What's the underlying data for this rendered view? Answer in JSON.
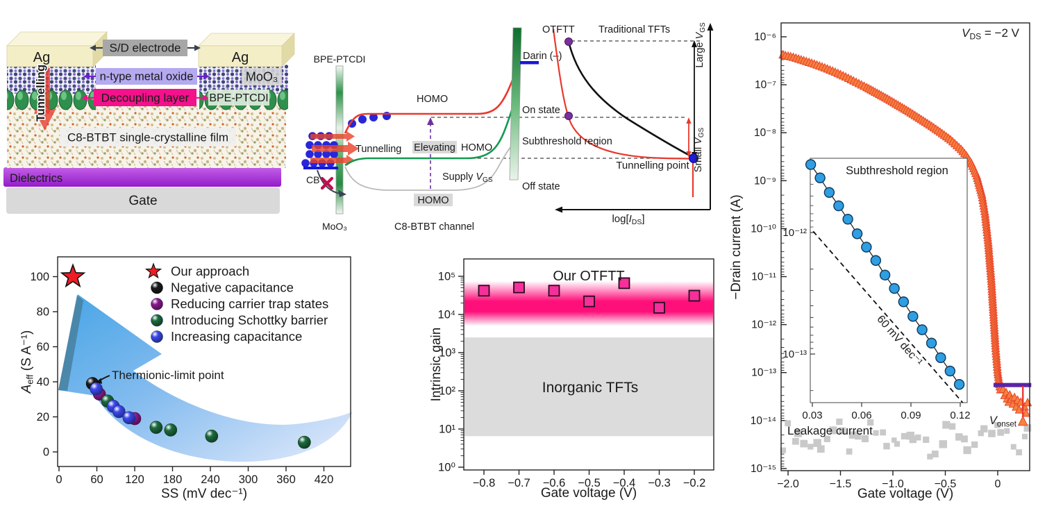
{
  "panel_device": {
    "ag_left": "Ag",
    "ag_right": "Ag",
    "sd_electrode": "S/D electrode",
    "n_type_metal_oxide": "n-type metal oxide",
    "moo3": "MoO₃",
    "decoupling_layer": "Decoupling layer",
    "bpe_ptcdi": "BPE-PTCDI",
    "tunnelling": "Tunnelling",
    "film": "C8-BTBT single-crystalline film",
    "dielectrics": "Dielectrics",
    "gate": "Gate"
  },
  "panel_band": {
    "bpe_ptcdi": "BPE-PTCDI",
    "moo3": "MoO₃",
    "tunnelling": "Tunnelling",
    "cb": "CB",
    "homo_top": "HOMO",
    "elevating": "Elevating",
    "homo_mid": "HOMO",
    "supply_prefix": "Supply ",
    "v_sym": "V",
    "gs_sub": "GS",
    "homo_bottom": "HOMO",
    "channel": "C8-BTBT channel",
    "drain": "Darin (–)"
  },
  "panel_transfer": {
    "otftt": "OTFTT",
    "traditional": "Traditional TFTs",
    "on_state": "On state",
    "subthreshold": "Subthreshold region",
    "off_state": "Off state",
    "tunnelling_point": "Tunnelling point",
    "log_prefix": "log[",
    "i_sym": "I",
    "ds_sub": "DS",
    "log_suffix": "]",
    "large_prefix": "Large ",
    "small_prefix": "Small ",
    "v_sym": "V",
    "gs_sub": "GS"
  },
  "chart_data": [
    {
      "id": "aeff-vs-ss",
      "type": "scatter",
      "xlabel": "SS (mV dec⁻¹)",
      "ylabel": {
        "sym": "A",
        "sub": "eff",
        "rest": " (S A⁻¹)"
      },
      "xlim": [
        0,
        462
      ],
      "ylim": [
        -8,
        112
      ],
      "x_ticks": [
        0,
        60,
        120,
        180,
        240,
        300,
        360,
        420
      ],
      "y_ticks": [
        0,
        20,
        40,
        60,
        80,
        100
      ],
      "annotation": "Thermionic-limit point",
      "star_point": {
        "x": 22,
        "y": 100
      },
      "legend": [
        {
          "label": "Our approach",
          "marker": "star",
          "color": "#ee1c25",
          "text_color": "#e8392c"
        },
        {
          "label": "Negative capacitance",
          "marker": "sphere",
          "color": "#1a1a1a"
        },
        {
          "label": "Reducing carrier trap states",
          "marker": "sphere",
          "color": "#8a1b8d"
        },
        {
          "label": "Introducing Schottky barrier",
          "marker": "sphere",
          "color": "#3c49ee"
        },
        {
          "label": "Increasing capacitance",
          "marker": "sphere",
          "color": "#1d6b3d"
        }
      ],
      "series": [
        {
          "name": "Negative capacitance",
          "color": "#1a1a1a",
          "points": [
            [
              53,
              39
            ]
          ]
        },
        {
          "name": "Reducing carrier trap states",
          "color": "#8a1b8d",
          "points": [
            [
              64,
              33
            ],
            [
              120,
              19
            ]
          ]
        },
        {
          "name": "Increasing capacitance",
          "color": "#1d6b3d",
          "points": [
            [
              77,
              29
            ],
            [
              154,
              14
            ],
            [
              177,
              12.5
            ],
            [
              242,
              9
            ],
            [
              389,
              5.5
            ]
          ]
        },
        {
          "name": "Introducing Schottky barrier",
          "color": "#3c49ee",
          "points": [
            [
              59,
              36
            ],
            [
              86,
              26
            ],
            [
              95,
              23
            ],
            [
              111,
              19.5
            ]
          ]
        }
      ]
    },
    {
      "id": "intrinsic-gain",
      "type": "scatter",
      "title": "Our OTFTT",
      "title_color": "#e8344e",
      "xlabel": "Gate voltage (V)",
      "ylabel": "Intrinsic gain",
      "x_ticks": [
        -0.8,
        -0.7,
        -0.6,
        -0.5,
        -0.4,
        -0.3,
        -0.2
      ],
      "y_exponents": [
        0,
        1,
        2,
        3,
        4,
        5
      ],
      "points": [
        [
          -0.8,
          42000
        ],
        [
          -0.7,
          51000
        ],
        [
          -0.6,
          42000
        ],
        [
          -0.5,
          22000
        ],
        [
          -0.4,
          66000
        ],
        [
          -0.3,
          15000
        ],
        [
          -0.2,
          31000
        ]
      ],
      "marker_color": "#f5309b",
      "marker_edge": "#2a0a1e",
      "pink_band": {
        "color": "#ff0f7a",
        "solid": [
          12000,
          22000
        ],
        "fade": [
          5000,
          75000
        ]
      },
      "gray_band": {
        "label": "Inorganic TFTs",
        "range": [
          6.5,
          2500
        ],
        "color": "#dcdcdc"
      }
    },
    {
      "id": "transfer-curve",
      "type": "line",
      "vds": {
        "sym": "V",
        "sub": "DS",
        "rest": " = −2 V"
      },
      "xlabel": "Gate voltage (V)",
      "ylabel": "−Drain current (A)",
      "x_ticks": [
        -2.0,
        -1.5,
        -1.0,
        -0.5,
        0
      ],
      "y_exponents": [
        -6,
        -7,
        -8,
        -9,
        -10,
        -11,
        -12,
        -13,
        -14,
        -15
      ],
      "curve_color": "#ee3b28",
      "marker_color": "#f6823e",
      "curve_log": [
        [
          -2.05,
          -6.38
        ],
        [
          -1.95,
          -6.43
        ],
        [
          -1.85,
          -6.5
        ],
        [
          -1.75,
          -6.57
        ],
        [
          -1.65,
          -6.65
        ],
        [
          -1.55,
          -6.74
        ],
        [
          -1.45,
          -6.84
        ],
        [
          -1.35,
          -6.95
        ],
        [
          -1.25,
          -7.06
        ],
        [
          -1.15,
          -7.18
        ],
        [
          -1.05,
          -7.3
        ],
        [
          -0.95,
          -7.43
        ],
        [
          -0.85,
          -7.56
        ],
        [
          -0.75,
          -7.7
        ],
        [
          -0.65,
          -7.84
        ],
        [
          -0.55,
          -7.99
        ],
        [
          -0.45,
          -8.15
        ],
        [
          -0.35,
          -8.35
        ],
        [
          -0.3,
          -8.48
        ],
        [
          -0.25,
          -8.65
        ],
        [
          -0.2,
          -8.9
        ],
        [
          -0.15,
          -9.3
        ],
        [
          -0.12,
          -9.7
        ],
        [
          -0.09,
          -10.3
        ],
        [
          -0.06,
          -11.1
        ],
        [
          -0.04,
          -11.8
        ],
        [
          -0.02,
          -12.5
        ],
        [
          0,
          -13.0
        ],
        [
          0.02,
          -13.3
        ],
        [
          0.03,
          -13.42
        ]
      ],
      "off_scatter_log": [
        [
          0.05,
          -13.35
        ],
        [
          0.065,
          -13.48
        ],
        [
          0.08,
          -13.42
        ],
        [
          0.09,
          -13.55
        ],
        [
          0.105,
          -13.62
        ],
        [
          0.115,
          -13.47
        ],
        [
          0.13,
          -13.56
        ],
        [
          0.145,
          -13.66
        ],
        [
          0.16,
          -13.52
        ],
        [
          0.175,
          -13.72
        ],
        [
          0.19,
          -13.58
        ],
        [
          0.205,
          -13.78
        ],
        [
          0.22,
          -13.62
        ],
        [
          0.255,
          -13.72
        ],
        [
          0.27,
          -13.85
        ],
        [
          0.285,
          -13.63
        ]
      ],
      "purple_level": {
        "x1": -0.04,
        "x2": 0.32,
        "log": -13.26,
        "color": "#5a24a8"
      },
      "vonset": {
        "x": 0.24,
        "top_log": -13.28,
        "bottom_log": -13.95,
        "label": {
          "sym": "V",
          "sub": "onset"
        }
      },
      "leakage": {
        "label": "Leakage current",
        "count": 46,
        "log_center": -14.38,
        "log_spread": 0.3,
        "color": "#c9c9c9"
      },
      "inset": {
        "title": "Subthreshold region",
        "x_ticks": [
          0.03,
          0.06,
          0.09,
          0.12
        ],
        "y_exponents": [
          -12,
          -13
        ],
        "points_log": [
          [
            0.029,
            -11.44
          ],
          [
            0.0347,
            -11.55
          ],
          [
            0.0403,
            -11.67
          ],
          [
            0.046,
            -11.78
          ],
          [
            0.0516,
            -11.89
          ],
          [
            0.0573,
            -12.01
          ],
          [
            0.0629,
            -12.12
          ],
          [
            0.0686,
            -12.23
          ],
          [
            0.0742,
            -12.35
          ],
          [
            0.0799,
            -12.46
          ],
          [
            0.0855,
            -12.57
          ],
          [
            0.0912,
            -12.69
          ],
          [
            0.0968,
            -12.8
          ],
          [
            0.1025,
            -12.91
          ],
          [
            0.1081,
            -13.03
          ],
          [
            0.1138,
            -13.14
          ],
          [
            0.1194,
            -13.25
          ]
        ],
        "marker_color": "#2f9ee2",
        "slope_line": {
          "label": "60 mV dec⁻¹",
          "x1": 0.0305,
          "log1": -11.99,
          "x2": 0.1215,
          "log2": -13.4
        }
      }
    }
  ]
}
